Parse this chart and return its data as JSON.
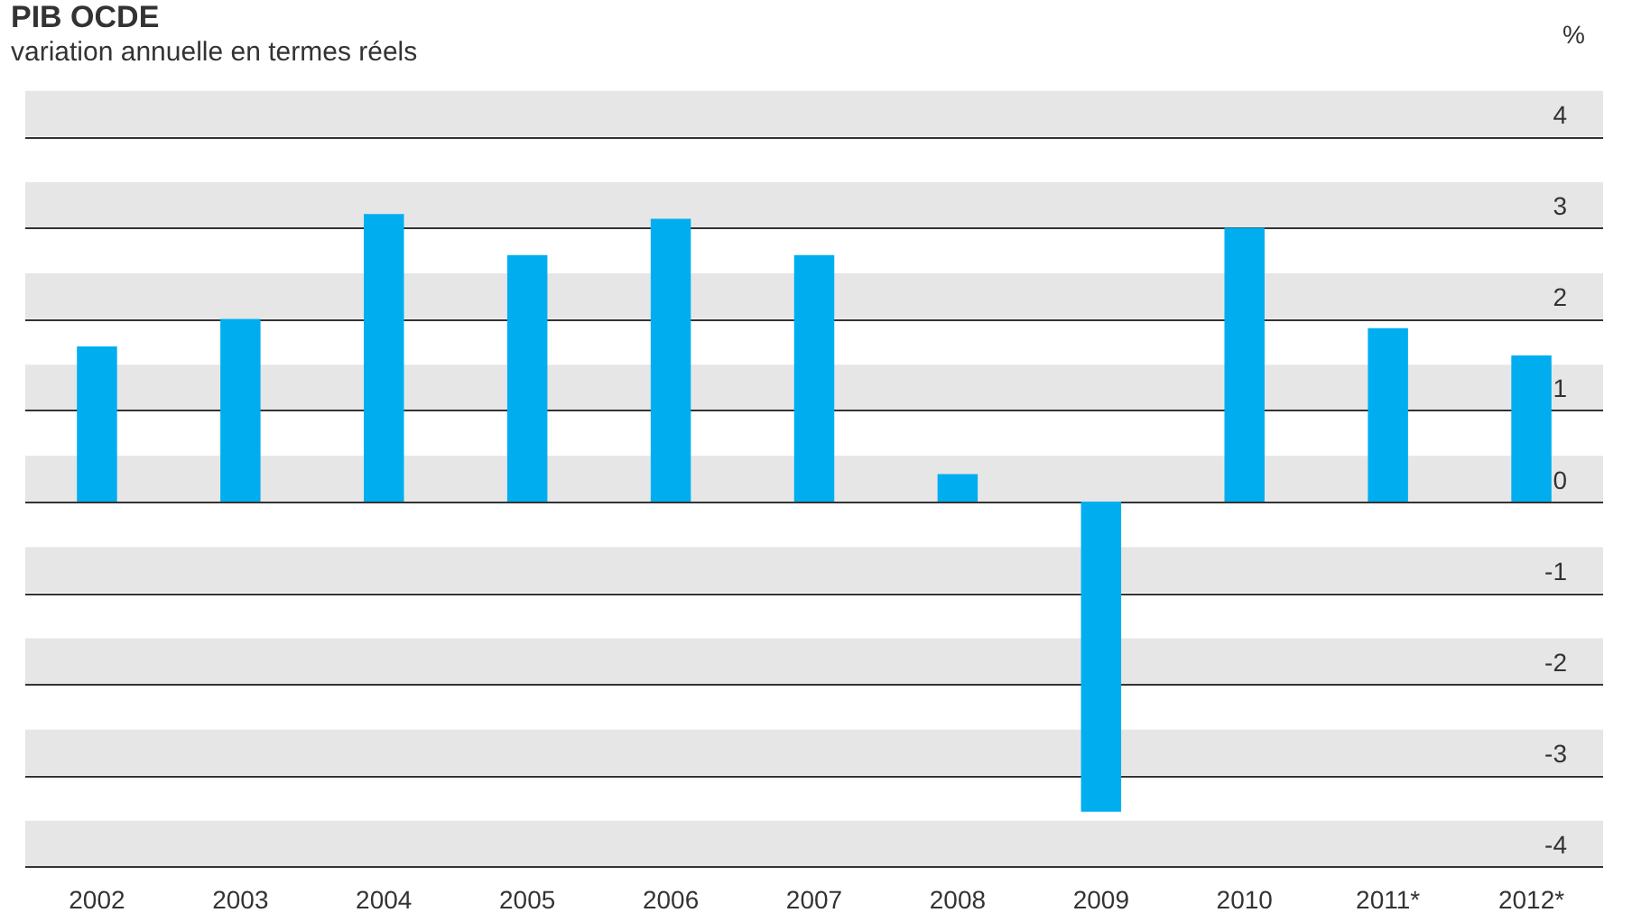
{
  "chart_data": {
    "type": "bar",
    "title": "PIB OCDE",
    "subtitle": "variation annuelle en termes réels",
    "ylabel": "%",
    "categories": [
      "2002",
      "2003",
      "2004",
      "2005",
      "2006",
      "2007",
      "2008",
      "2009",
      "2010",
      "2011*",
      "2012*"
    ],
    "values": [
      1.7,
      2.0,
      3.15,
      2.7,
      3.1,
      2.7,
      0.3,
      -3.4,
      3.0,
      1.9,
      1.6
    ],
    "color": "#00aeef",
    "ylim": [
      -4,
      4.5
    ],
    "yticks": [
      -4,
      -3,
      -2,
      -1,
      0,
      1,
      2,
      3,
      4
    ],
    "grid": "y",
    "legend": false,
    "bands": [
      {
        "axis": "y",
        "from": -4,
        "to": -3.5,
        "color": "#e6e6e7"
      },
      {
        "axis": "y",
        "from": -3,
        "to": -2.5,
        "color": "#e6e6e7"
      },
      {
        "axis": "y",
        "from": -2,
        "to": -1.5,
        "color": "#e6e6e7"
      },
      {
        "axis": "y",
        "from": -1,
        "to": -0.5,
        "color": "#e6e6e7"
      },
      {
        "axis": "y",
        "from": 0,
        "to": 0.5,
        "color": "#e6e6e7"
      },
      {
        "axis": "y",
        "from": 1,
        "to": 1.5,
        "color": "#e6e6e7"
      },
      {
        "axis": "y",
        "from": 2,
        "to": 2.5,
        "color": "#e6e6e7"
      },
      {
        "axis": "y",
        "from": 3,
        "to": 3.5,
        "color": "#e6e6e7"
      },
      {
        "axis": "y",
        "from": 4,
        "to": 4.5,
        "color": "#e6e6e7"
      }
    ]
  }
}
